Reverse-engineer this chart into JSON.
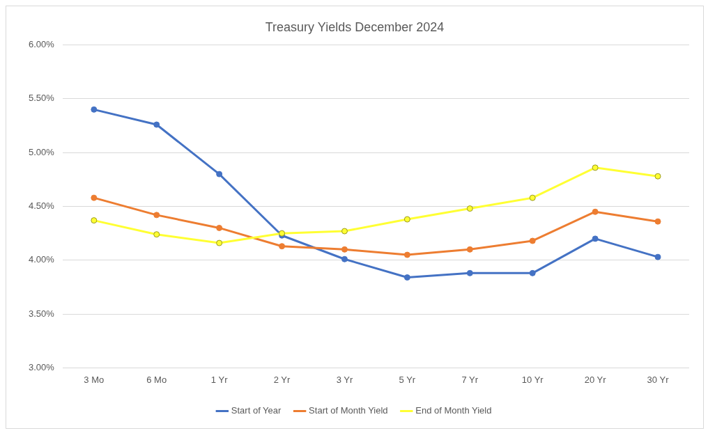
{
  "chart_data": {
    "type": "line",
    "title": "Treasury Yields December 2024",
    "categories": [
      "3 Mo",
      "6 Mo",
      "1 Yr",
      "2 Yr",
      "3 Yr",
      "5 Yr",
      "7 Yr",
      "10 Yr",
      "20 Yr",
      "30 Yr"
    ],
    "series": [
      {
        "name": "Start of Year",
        "color": "#4472c4",
        "values": [
          5.4,
          5.26,
          4.8,
          4.23,
          4.01,
          3.84,
          3.88,
          3.88,
          4.2,
          4.03
        ]
      },
      {
        "name": "Start of Month Yield",
        "color": "#ed7d31",
        "values": [
          4.58,
          4.42,
          4.3,
          4.13,
          4.1,
          4.05,
          4.1,
          4.18,
          4.45,
          4.36
        ]
      },
      {
        "name": "End of Month Yield",
        "color": "#ffff33",
        "values": [
          4.37,
          4.24,
          4.16,
          4.25,
          4.27,
          4.38,
          4.48,
          4.58,
          4.86,
          4.78
        ]
      }
    ],
    "ylim": [
      3,
      6
    ],
    "yticks": [
      {
        "value": 3,
        "label": "3.00%"
      },
      {
        "value": 3.5,
        "label": "3.50%"
      },
      {
        "value": 4,
        "label": "4.00%"
      },
      {
        "value": 4.5,
        "label": "4.50%"
      },
      {
        "value": 5,
        "label": "5.00%"
      },
      {
        "value": 5.5,
        "label": "5.50%"
      },
      {
        "value": 6,
        "label": "6.00%"
      }
    ],
    "grid": "y",
    "legend": "bottom",
    "marker": "circle",
    "line_style": "solid"
  }
}
